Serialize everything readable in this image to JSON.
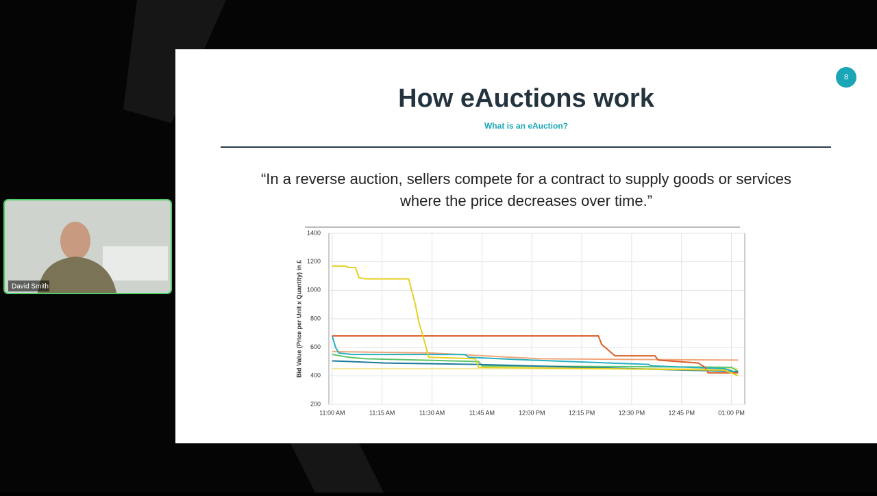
{
  "participant": {
    "name": "David Smith"
  },
  "slide": {
    "number": "8",
    "title": "How eAuctions work",
    "subtitle": "What is an eAuction?",
    "quote": [
      "“In a reverse auction, sellers compete for a contract to supply goods or services",
      "where the price decreases over time.”"
    ]
  },
  "chart_data": {
    "type": "line",
    "y_label": "Bid Value (Price per Unit x Quantity) in £",
    "xlim": [
      -1,
      124
    ],
    "ylim": [
      200,
      1400
    ],
    "xticks": [
      {
        "value": 0,
        "label": "11:00 AM"
      },
      {
        "value": 15,
        "label": "11:15 AM"
      },
      {
        "value": 30,
        "label": "11:30 AM"
      },
      {
        "value": 45,
        "label": "11:45 AM"
      },
      {
        "value": 60,
        "label": "12:00 PM"
      },
      {
        "value": 75,
        "label": "12:15 PM"
      },
      {
        "value": 90,
        "label": "12:30 PM"
      },
      {
        "value": 105,
        "label": "12:45 PM"
      },
      {
        "value": 120,
        "label": "01:00 PM"
      }
    ],
    "yticks": [
      200,
      400,
      600,
      800,
      1000,
      1200,
      1400
    ],
    "grid": true,
    "series": [
      {
        "color": "#f3e79a",
        "x": [
          0,
          122
        ],
        "values": [
          450,
          450
        ]
      },
      {
        "color": "#f0a57a",
        "x": [
          0,
          30,
          62,
          122
        ],
        "values": [
          570,
          560,
          520,
          510
        ]
      },
      {
        "color": "#5cc46a",
        "x": [
          0,
          5,
          10,
          44,
          45,
          120,
          122
        ],
        "values": [
          550,
          530,
          520,
          500,
          470,
          460,
          430
        ]
      },
      {
        "color": "#1a7a9a",
        "x": [
          0,
          16,
          43,
          122
        ],
        "values": [
          505,
          490,
          480,
          430
        ]
      },
      {
        "color": "#28b0c0",
        "x": [
          0,
          1,
          2,
          6,
          40,
          41,
          60,
          95,
          96,
          118,
          122
        ],
        "values": [
          680,
          600,
          560,
          550,
          550,
          530,
          510,
          480,
          470,
          450,
          420
        ]
      },
      {
        "color": "#d8602a",
        "x": [
          0,
          80,
          81,
          83,
          85,
          97,
          98,
          110,
          112,
          113,
          122
        ],
        "values": [
          680,
          680,
          620,
          580,
          540,
          540,
          510,
          490,
          460,
          420,
          420
        ]
      },
      {
        "color": "#e6d020",
        "x": [
          0,
          4,
          5,
          7,
          8,
          10,
          23,
          25,
          26,
          28,
          29,
          43,
          44,
          118,
          122
        ],
        "values": [
          1170,
          1170,
          1160,
          1160,
          1090,
          1080,
          1080,
          900,
          780,
          620,
          530,
          520,
          460,
          440,
          400
        ]
      }
    ]
  }
}
